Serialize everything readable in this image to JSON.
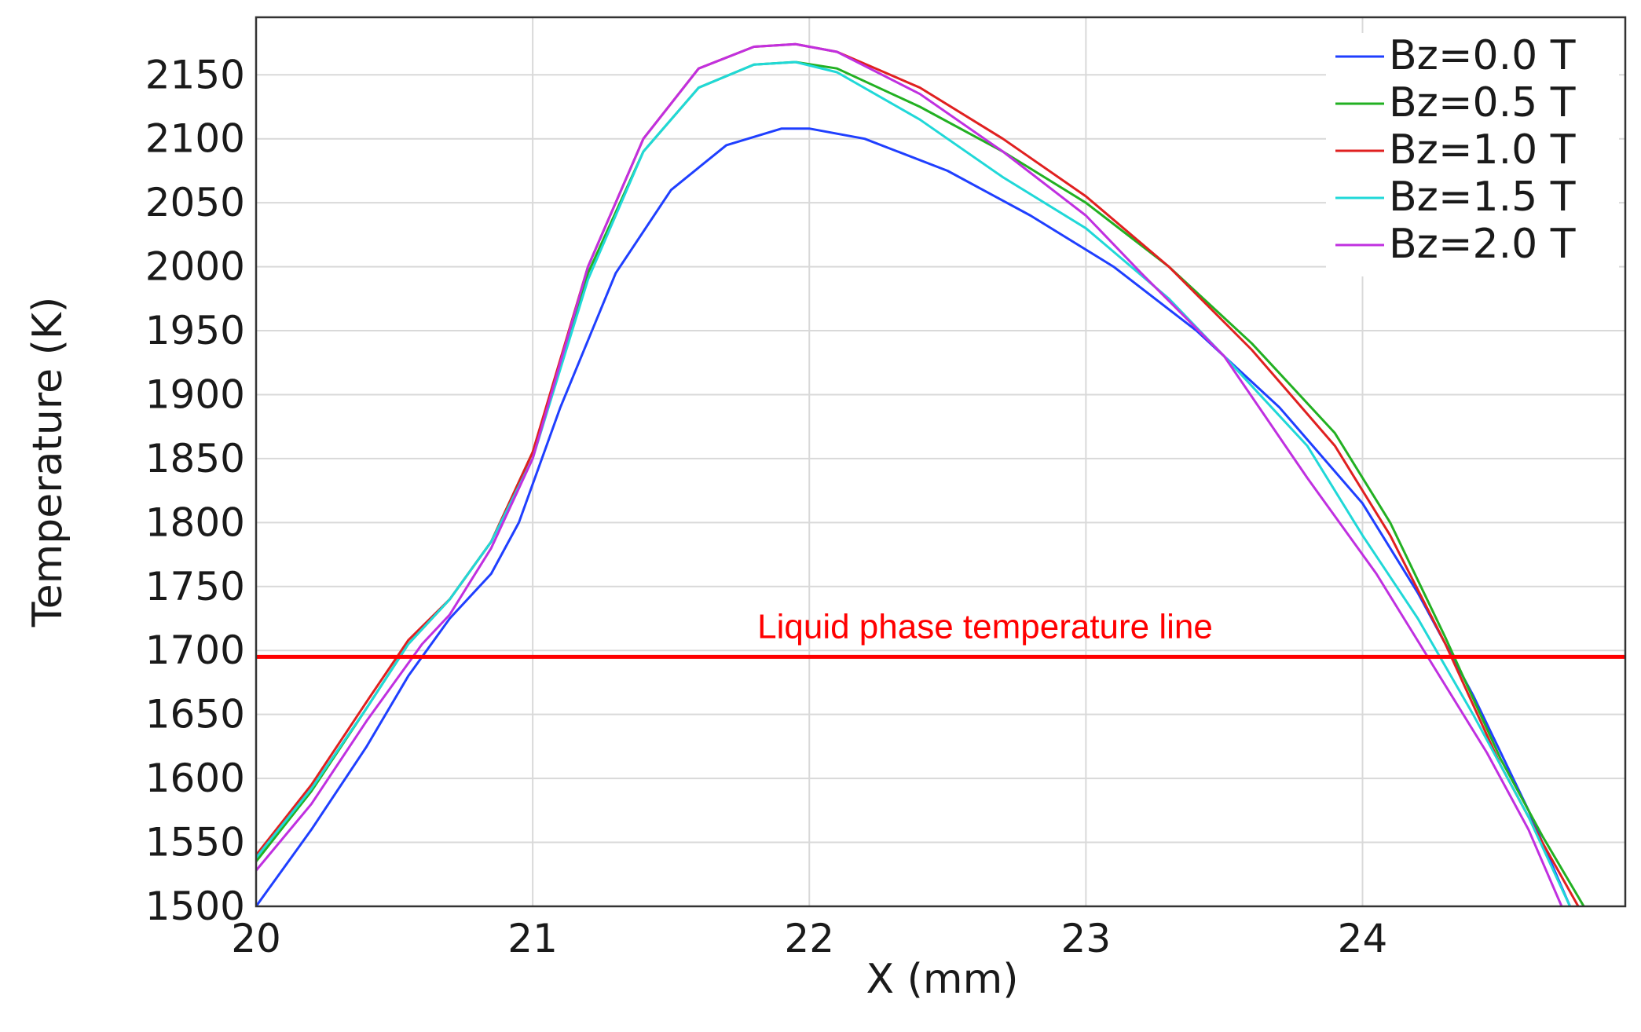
{
  "chart_data": {
    "type": "line",
    "xlabel": "X  (mm)",
    "ylabel": "Temperature (K)",
    "xlim": [
      20,
      24.95
    ],
    "ylim": [
      1500,
      2195
    ],
    "xticks": [
      20,
      21,
      22,
      23,
      24
    ],
    "yticks": [
      1500,
      1550,
      1600,
      1650,
      1700,
      1750,
      1800,
      1850,
      1900,
      1950,
      2000,
      2050,
      2100,
      2150
    ],
    "grid": true,
    "legend_position": "top-right",
    "series": [
      {
        "name": "Bz=0.0 T",
        "color": "#1f3fff",
        "x": [
          20.0,
          20.2,
          20.4,
          20.55,
          20.7,
          20.85,
          20.95,
          21.1,
          21.3,
          21.5,
          21.7,
          21.9,
          22.0,
          22.2,
          22.5,
          22.8,
          23.1,
          23.4,
          23.7,
          24.0,
          24.2,
          24.4,
          24.6,
          24.75
        ],
        "y": [
          1500,
          1560,
          1625,
          1680,
          1725,
          1760,
          1800,
          1890,
          1995,
          2060,
          2095,
          2108,
          2108,
          2100,
          2075,
          2040,
          2000,
          1950,
          1890,
          1815,
          1745,
          1665,
          1575,
          1500
        ]
      },
      {
        "name": "Bz=0.5 T",
        "color": "#22b022",
        "x": [
          20.0,
          20.2,
          20.4,
          20.55,
          20.7,
          20.85,
          21.0,
          21.2,
          21.4,
          21.6,
          21.8,
          21.95,
          22.1,
          22.4,
          22.7,
          23.0,
          23.3,
          23.6,
          23.9,
          24.1,
          24.3,
          24.5,
          24.65,
          24.8
        ],
        "y": [
          1535,
          1590,
          1655,
          1705,
          1740,
          1785,
          1855,
          1995,
          2090,
          2140,
          2158,
          2160,
          2155,
          2125,
          2090,
          2050,
          2000,
          1940,
          1870,
          1800,
          1710,
          1615,
          1555,
          1500
        ]
      },
      {
        "name": "Bz=1.0 T",
        "color": "#e02020",
        "x": [
          20.0,
          20.2,
          20.4,
          20.55,
          20.7,
          20.85,
          21.0,
          21.2,
          21.4,
          21.6,
          21.8,
          21.95,
          22.1,
          22.4,
          22.7,
          23.0,
          23.3,
          23.6,
          23.9,
          24.1,
          24.3,
          24.5,
          24.65,
          24.78
        ],
        "y": [
          1540,
          1595,
          1660,
          1708,
          1740,
          1785,
          1855,
          2000,
          2100,
          2155,
          2172,
          2174,
          2168,
          2140,
          2100,
          2055,
          2000,
          1935,
          1860,
          1790,
          1705,
          1610,
          1550,
          1500
        ]
      },
      {
        "name": "Bz=1.5 T",
        "color": "#20d8d8",
        "x": [
          20.0,
          20.2,
          20.4,
          20.55,
          20.7,
          20.85,
          21.0,
          21.2,
          21.4,
          21.6,
          21.8,
          21.95,
          22.1,
          22.4,
          22.7,
          23.0,
          23.3,
          23.5,
          23.8,
          24.0,
          24.2,
          24.4,
          24.6,
          24.75
        ],
        "y": [
          1538,
          1592,
          1655,
          1705,
          1740,
          1785,
          1850,
          1990,
          2090,
          2140,
          2158,
          2160,
          2152,
          2115,
          2070,
          2030,
          1975,
          1930,
          1860,
          1790,
          1725,
          1650,
          1570,
          1500
        ]
      },
      {
        "name": "Bz=2.0 T",
        "color": "#c030e0",
        "x": [
          20.0,
          20.2,
          20.4,
          20.6,
          20.7,
          20.85,
          21.0,
          21.2,
          21.4,
          21.6,
          21.8,
          21.95,
          22.1,
          22.4,
          22.7,
          23.0,
          23.2,
          23.5,
          23.8,
          24.05,
          24.25,
          24.45,
          24.6,
          24.72
        ],
        "y": [
          1528,
          1580,
          1645,
          1705,
          1728,
          1780,
          1850,
          2000,
          2100,
          2155,
          2172,
          2174,
          2168,
          2135,
          2090,
          2040,
          1995,
          1930,
          1835,
          1760,
          1690,
          1620,
          1560,
          1500
        ]
      }
    ],
    "reference_line": {
      "label": "Liquid phase temperature line",
      "y": 1695,
      "color": "#ff0000"
    }
  }
}
